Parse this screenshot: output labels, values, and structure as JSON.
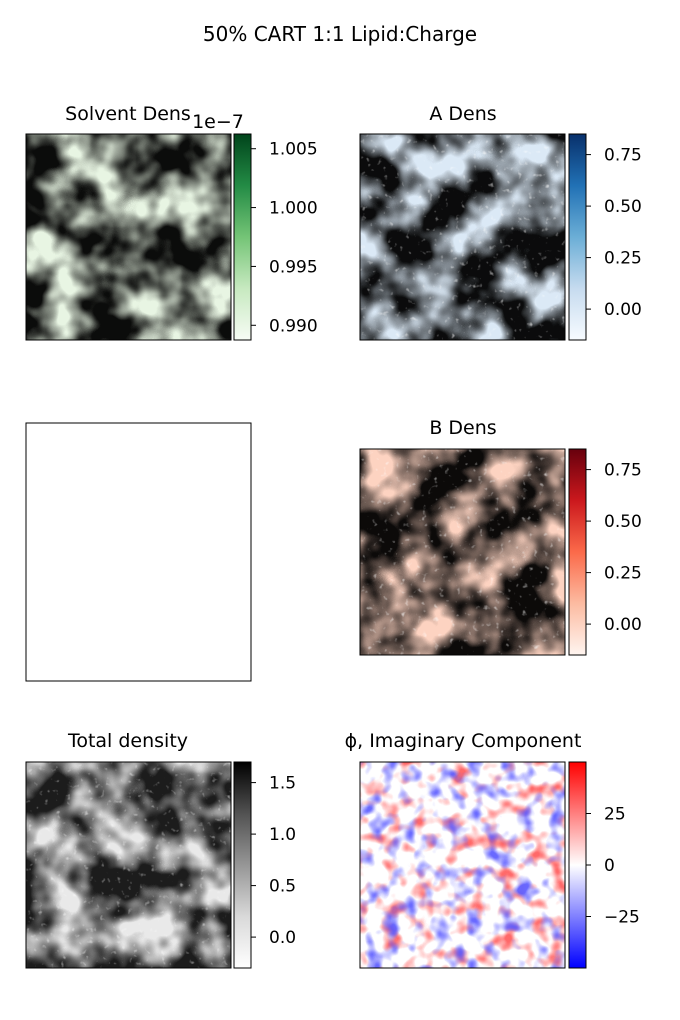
{
  "figure": {
    "title": "50% CART 1:1 Lipid:Charge"
  },
  "chart_data": [
    {
      "type": "heatmap",
      "title": "Solvent Dens",
      "colormap": "Greens",
      "colors": [
        "#f7fcf5",
        "#c7e9c0",
        "#74c476",
        "#238b45",
        "#00441b"
      ],
      "colorbar_range": [
        0.98875,
        1.00625
      ],
      "colorbar_ticks": [
        "1.005",
        "1.000",
        "0.995",
        "0.990"
      ],
      "colorbar_tick_values": [
        1.005,
        1.0,
        0.995,
        0.99
      ],
      "offset_label": "1e−7",
      "xticks": [],
      "yticks": []
    },
    {
      "type": "heatmap",
      "title": "A Dens",
      "colormap": "Blues",
      "colors": [
        "#f7fbff",
        "#c6dbef",
        "#6baed6",
        "#2171b5",
        "#08306b"
      ],
      "colorbar_range": [
        -0.15,
        0.85
      ],
      "colorbar_ticks": [
        "0.75",
        "0.50",
        "0.25",
        "0.00"
      ],
      "colorbar_tick_values": [
        0.75,
        0.5,
        0.25,
        0.0
      ],
      "xticks": [],
      "yticks": []
    },
    {
      "type": "heatmap",
      "title": "",
      "empty": true,
      "xticks": [],
      "yticks": []
    },
    {
      "type": "heatmap",
      "title": "B Dens",
      "colormap": "Reds",
      "colors": [
        "#fff5f0",
        "#fcbba1",
        "#fb6a4a",
        "#cb181d",
        "#67000d"
      ],
      "colorbar_range": [
        -0.15,
        0.85
      ],
      "colorbar_ticks": [
        "0.75",
        "0.50",
        "0.25",
        "0.00"
      ],
      "colorbar_tick_values": [
        0.75,
        0.5,
        0.25,
        0.0
      ],
      "xticks": [],
      "yticks": []
    },
    {
      "type": "heatmap",
      "title": "Total density",
      "colormap": "Greys",
      "colors": [
        "#ffffff",
        "#d9d9d9",
        "#969696",
        "#525252",
        "#000000"
      ],
      "colorbar_range": [
        -0.3,
        1.7
      ],
      "colorbar_ticks": [
        "1.5",
        "1.0",
        "0.5",
        "0.0"
      ],
      "colorbar_tick_values": [
        1.5,
        1.0,
        0.5,
        0.0
      ],
      "xticks": [],
      "yticks": []
    },
    {
      "type": "heatmap",
      "title": "ϕ, Imaginary Component",
      "colormap": "bwr",
      "colors": [
        "#0000ff",
        "#ffffff",
        "#ff0000"
      ],
      "colorbar_range": [
        -50,
        50
      ],
      "colorbar_ticks": [
        "25",
        "0",
        "−25"
      ],
      "colorbar_tick_values": [
        25,
        0,
        -25
      ],
      "xticks": [],
      "yticks": []
    }
  ]
}
